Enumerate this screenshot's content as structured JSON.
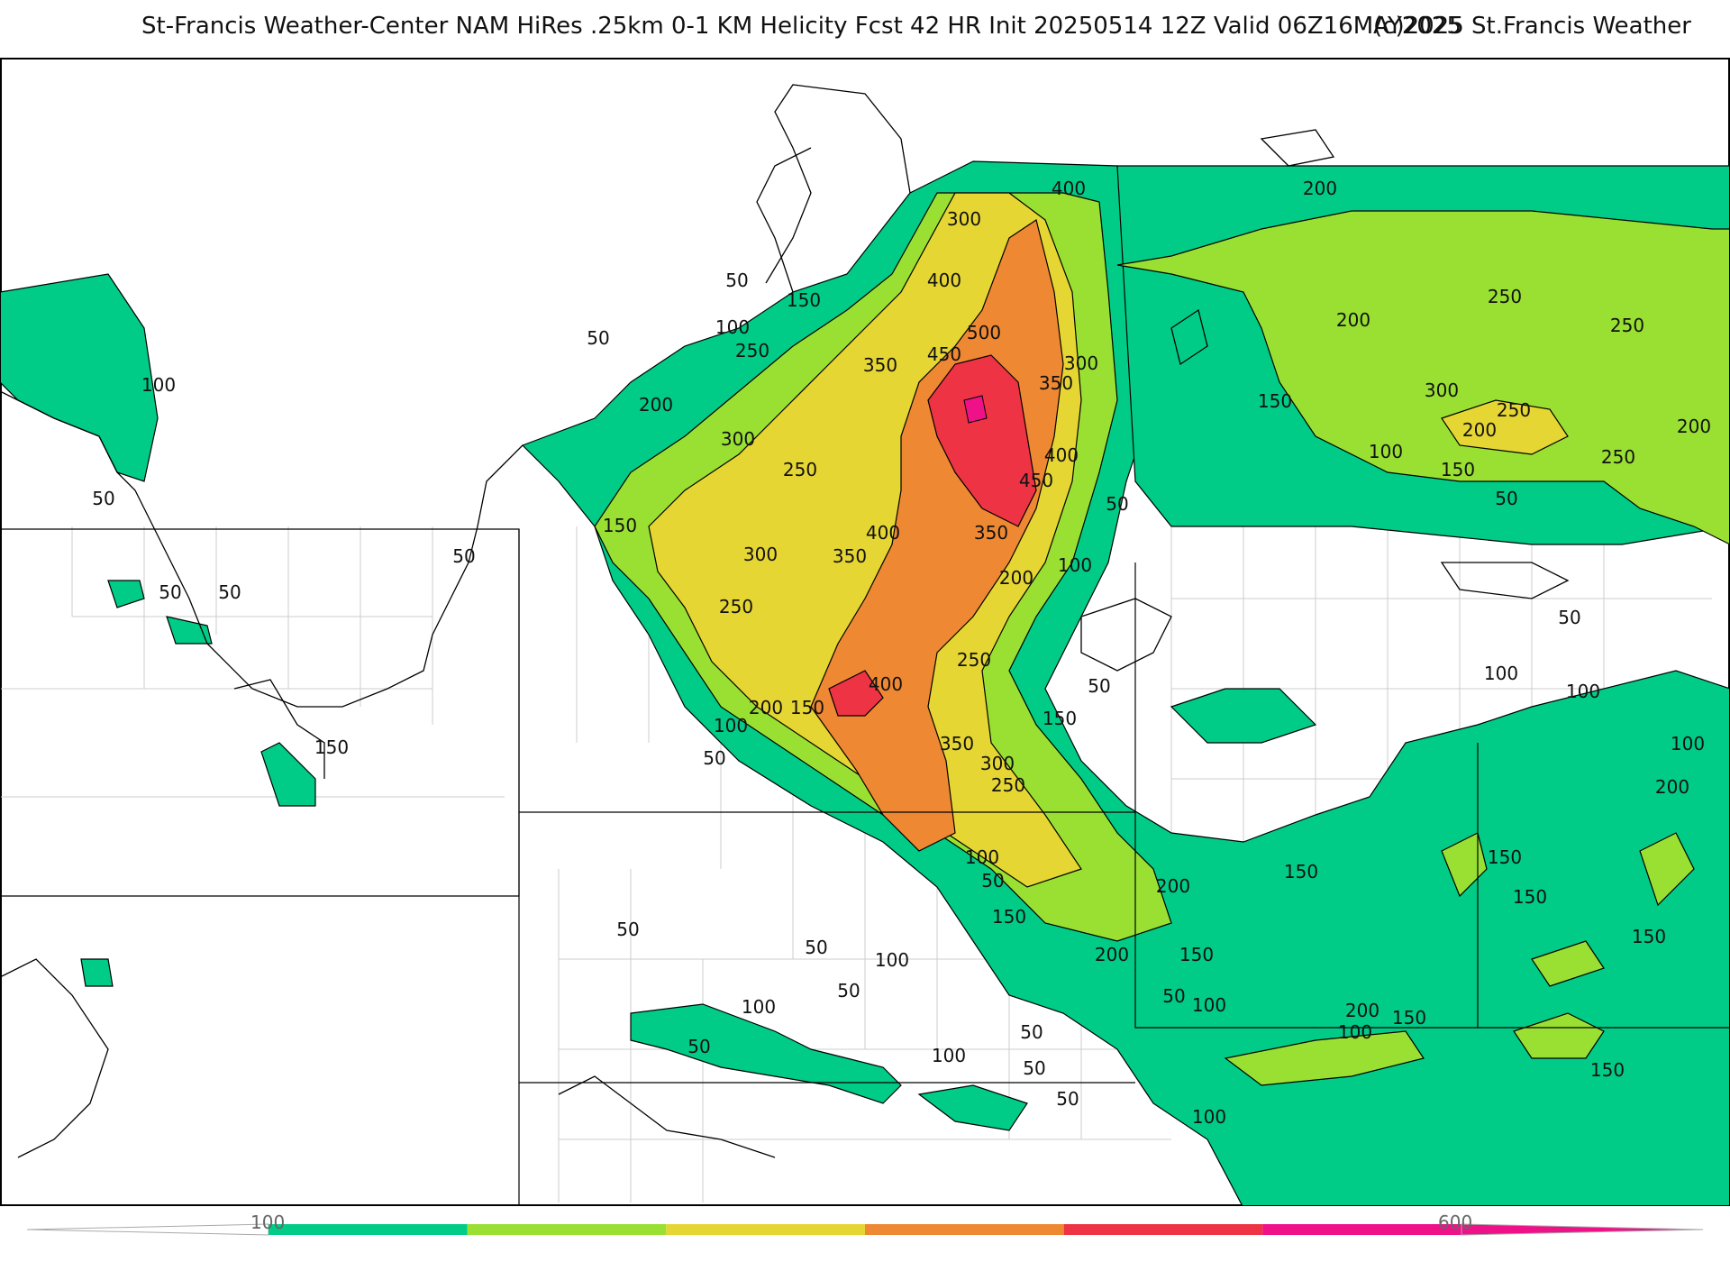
{
  "header": {
    "title": "St-Francis Weather-Center NAM HiRes .25km 0-1 KM Helicity Fcst 42 HR Init 20250514 12Z  Valid 06Z16MAY2025",
    "copyright": "(c)2025 St.Francis Weather"
  },
  "map": {
    "field": "0-1 KM Helicity",
    "contour_labels": [
      {
        "id": "c1",
        "text": "400"
      },
      {
        "id": "c2",
        "text": "300"
      },
      {
        "id": "c3",
        "text": "400"
      },
      {
        "id": "c4",
        "text": "50"
      },
      {
        "id": "c5",
        "text": "150"
      },
      {
        "id": "c6",
        "text": "100"
      },
      {
        "id": "c7",
        "text": "500"
      },
      {
        "id": "c8",
        "text": "450"
      },
      {
        "id": "c9",
        "text": "50"
      },
      {
        "id": "c10",
        "text": "250"
      },
      {
        "id": "c11",
        "text": "350"
      },
      {
        "id": "c12",
        "text": "300"
      },
      {
        "id": "c13",
        "text": "350"
      },
      {
        "id": "c14",
        "text": "200"
      },
      {
        "id": "c15",
        "text": "100"
      },
      {
        "id": "c16",
        "text": "300"
      },
      {
        "id": "c17",
        "text": "400"
      },
      {
        "id": "c18",
        "text": "450"
      },
      {
        "id": "c19",
        "text": "250"
      },
      {
        "id": "c20",
        "text": "50"
      },
      {
        "id": "c21",
        "text": "150"
      },
      {
        "id": "c22",
        "text": "400"
      },
      {
        "id": "c23",
        "text": "350"
      },
      {
        "id": "c24",
        "text": "50"
      },
      {
        "id": "c25",
        "text": "300"
      },
      {
        "id": "c26",
        "text": "350"
      },
      {
        "id": "c27",
        "text": "100"
      },
      {
        "id": "c28",
        "text": "200"
      },
      {
        "id": "c29",
        "text": "50"
      },
      {
        "id": "c30",
        "text": "50"
      },
      {
        "id": "c31",
        "text": "250"
      },
      {
        "id": "c32",
        "text": "250"
      },
      {
        "id": "c33",
        "text": "400"
      },
      {
        "id": "c34",
        "text": "50"
      },
      {
        "id": "c35",
        "text": "200"
      },
      {
        "id": "c36",
        "text": "150"
      },
      {
        "id": "c37",
        "text": "150"
      },
      {
        "id": "c38",
        "text": "100"
      },
      {
        "id": "c39",
        "text": "350"
      },
      {
        "id": "c40",
        "text": "300"
      },
      {
        "id": "c41",
        "text": "50"
      },
      {
        "id": "c42",
        "text": "250"
      },
      {
        "id": "c43",
        "text": "100"
      },
      {
        "id": "c44",
        "text": "50"
      },
      {
        "id": "c45",
        "text": "150"
      },
      {
        "id": "c46",
        "text": "200"
      },
      {
        "id": "c47",
        "text": "150"
      },
      {
        "id": "c48",
        "text": "200"
      },
      {
        "id": "c49",
        "text": "200"
      },
      {
        "id": "c50",
        "text": "250"
      },
      {
        "id": "c51",
        "text": "200"
      },
      {
        "id": "c52",
        "text": "250"
      },
      {
        "id": "c53",
        "text": "150"
      },
      {
        "id": "c54",
        "text": "300"
      },
      {
        "id": "c55",
        "text": "250"
      },
      {
        "id": "c56",
        "text": "200"
      },
      {
        "id": "c57",
        "text": "200"
      },
      {
        "id": "c58",
        "text": "100"
      },
      {
        "id": "c59",
        "text": "150"
      },
      {
        "id": "c60",
        "text": "250"
      },
      {
        "id": "c61",
        "text": "50"
      },
      {
        "id": "c62",
        "text": "50"
      },
      {
        "id": "c63",
        "text": "100"
      },
      {
        "id": "c64",
        "text": "50"
      },
      {
        "id": "c65",
        "text": "100"
      },
      {
        "id": "c66",
        "text": "100"
      },
      {
        "id": "c67",
        "text": "100"
      },
      {
        "id": "c68",
        "text": "200"
      },
      {
        "id": "c69",
        "text": "150"
      },
      {
        "id": "c70",
        "text": "150"
      },
      {
        "id": "c71",
        "text": "150"
      },
      {
        "id": "c72",
        "text": "150"
      },
      {
        "id": "c73",
        "text": "50"
      },
      {
        "id": "c74",
        "text": "50"
      },
      {
        "id": "c75",
        "text": "100"
      },
      {
        "id": "c76",
        "text": "50"
      },
      {
        "id": "c77",
        "text": "100"
      },
      {
        "id": "c78",
        "text": "50"
      },
      {
        "id": "c79",
        "text": "100"
      },
      {
        "id": "c80",
        "text": "50"
      },
      {
        "id": "c81",
        "text": "50"
      },
      {
        "id": "c82",
        "text": "100"
      },
      {
        "id": "c83",
        "text": "200"
      },
      {
        "id": "c84",
        "text": "150"
      },
      {
        "id": "c85",
        "text": "100"
      },
      {
        "id": "c86",
        "text": "150"
      },
      {
        "id": "c87",
        "text": "50"
      },
      {
        "id": "c88",
        "text": "50"
      },
      {
        "id": "c89",
        "text": "100"
      },
      {
        "id": "c90",
        "text": "150"
      }
    ]
  },
  "colorbar": {
    "labels": [
      "100",
      "600"
    ],
    "colors": [
      "#00cc88",
      "#99e033",
      "#e6d633",
      "#ee8833",
      "#ee3344",
      "#ee1188"
    ]
  }
}
